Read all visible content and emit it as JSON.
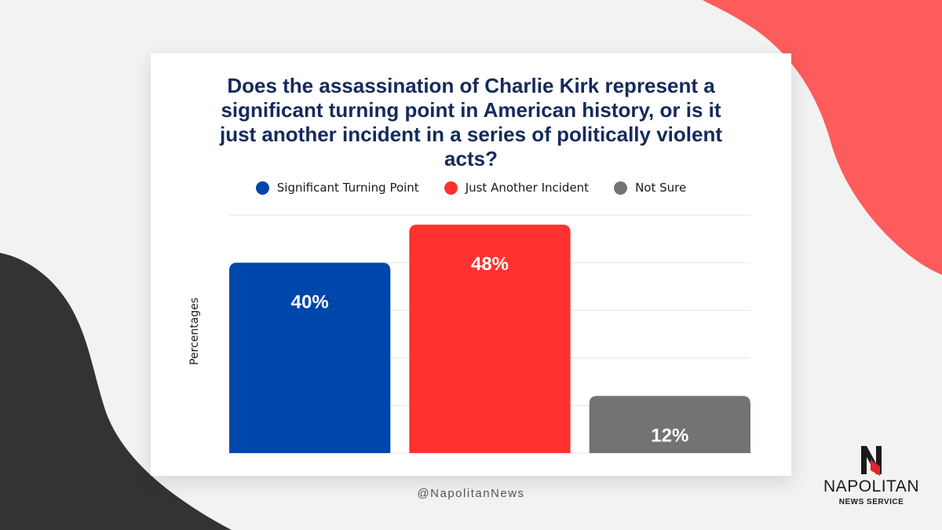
{
  "colors": {
    "background": "#f2f2f2",
    "blob_red": "#fd5c5c",
    "blob_dark": "#333333",
    "title": "#152a5c"
  },
  "chart_data": {
    "type": "bar",
    "title": "Does the assassination of Charlie Kirk represent a significant turning point in American history, or is it just another incident in a series of politically violent acts?",
    "ylabel": "Percentages",
    "ylim": [
      0,
      50
    ],
    "grid": true,
    "legend_position": "top",
    "categories": [
      "Significant Turning Point",
      "Just Another Incident",
      "Not Sure"
    ],
    "values": [
      40,
      48,
      12
    ],
    "value_labels": [
      "40%",
      "48%",
      "12%"
    ],
    "colors": [
      "#0047ab",
      "#ff3131",
      "#737373"
    ]
  },
  "footer": {
    "handle": "@NapolitanNews"
  },
  "logo": {
    "icon": "napolitan-n-logo-icon",
    "name": "NAPOLITAN",
    "subtitle": "NEWS SERVICE"
  }
}
